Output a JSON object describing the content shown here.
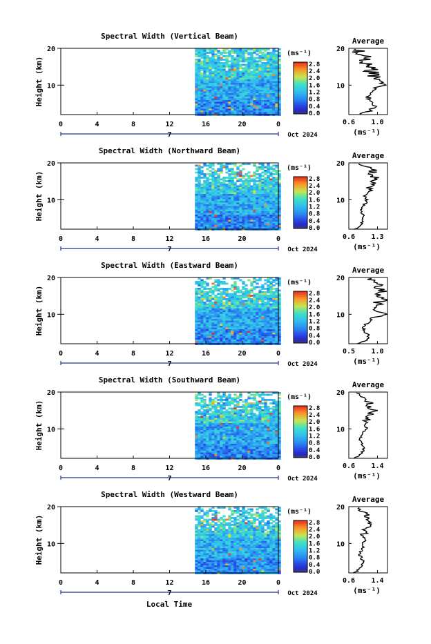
{
  "figure": {
    "xlabel_bottom": "Local Time"
  },
  "panels": [
    {
      "title": "Spectral Width (Vertical Beam)",
      "ylabel": "Height (km)",
      "yticks": [
        "20",
        "10"
      ],
      "xticks": [
        "0",
        "4",
        "8",
        "12",
        "16",
        "20",
        "0"
      ],
      "date_marker": "7",
      "date_label": "Oct 2024",
      "colorbar": {
        "unit_label": "(ms⁻¹)",
        "ticks": [
          "2.8",
          "2.4",
          "2.0",
          "1.6",
          "1.2",
          "0.8",
          "0.4",
          "0.0"
        ]
      },
      "profile": {
        "title": "Average",
        "xticks": [
          "0.6",
          "1.0"
        ],
        "yticks": [
          "20",
          "10"
        ],
        "xlabel": "(ms⁻¹)"
      }
    },
    {
      "title": "Spectral Width (Northward Beam)",
      "ylabel": "Height (km)",
      "yticks": [
        "20",
        "10"
      ],
      "xticks": [
        "0",
        "4",
        "8",
        "12",
        "16",
        "20",
        "0"
      ],
      "date_marker": "7",
      "date_label": "Oct 2024",
      "colorbar": {
        "unit_label": "(ms⁻¹)",
        "ticks": [
          "2.8",
          "2.4",
          "2.0",
          "1.6",
          "1.2",
          "0.8",
          "0.4",
          "0.0"
        ]
      },
      "profile": {
        "title": "Average",
        "xticks": [
          "0.6",
          "1.3"
        ],
        "yticks": [
          "20",
          "10"
        ],
        "xlabel": "(ms⁻¹)"
      }
    },
    {
      "title": "Spectral Width (Eastward Beam)",
      "ylabel": "Height (km)",
      "yticks": [
        "20",
        "10"
      ],
      "xticks": [
        "0",
        "4",
        "8",
        "12",
        "16",
        "20",
        "0"
      ],
      "date_marker": "7",
      "date_label": "Oct 2024",
      "colorbar": {
        "unit_label": "(ms⁻¹)",
        "ticks": [
          "2.8",
          "2.4",
          "2.0",
          "1.6",
          "1.2",
          "0.8",
          "0.4",
          "0.0"
        ]
      },
      "profile": {
        "title": "Average",
        "xticks": [
          "0.5",
          "1.0"
        ],
        "yticks": [
          "20",
          "10"
        ],
        "xlabel": "(ms⁻¹)"
      }
    },
    {
      "title": "Spectral Width (Southward Beam)",
      "ylabel": "Height (km)",
      "yticks": [
        "20",
        "10"
      ],
      "xticks": [
        "0",
        "4",
        "8",
        "12",
        "16",
        "20",
        "0"
      ],
      "date_marker": "7",
      "date_label": "Oct 2024",
      "colorbar": {
        "unit_label": "(ms⁻¹)",
        "ticks": [
          "2.8",
          "2.4",
          "2.0",
          "1.6",
          "1.2",
          "0.8",
          "0.4",
          "0.0"
        ]
      },
      "profile": {
        "title": "Average",
        "xticks": [
          "0.6",
          "1.4"
        ],
        "yticks": [
          "20",
          "10"
        ],
        "xlabel": "(ms⁻¹)"
      }
    },
    {
      "title": "Spectral Width (Westward Beam)",
      "ylabel": "Height (km)",
      "yticks": [
        "20",
        "10"
      ],
      "xticks": [
        "0",
        "4",
        "8",
        "12",
        "16",
        "20",
        "0"
      ],
      "date_marker": "7",
      "date_label": "Oct 2024",
      "colorbar": {
        "unit_label": "(ms⁻¹)",
        "ticks": [
          "2.8",
          "2.4",
          "2.0",
          "1.6",
          "1.2",
          "0.8",
          "0.4",
          "0.0"
        ]
      },
      "profile": {
        "title": "Average",
        "xticks": [
          "0.6",
          "1.4"
        ],
        "yticks": [
          "20",
          "10"
        ],
        "xlabel": "(ms⁻¹)"
      }
    }
  ],
  "chart_data": [
    {
      "type": "heatmap",
      "title": "Spectral Width (Vertical Beam)",
      "xlabel": "",
      "ylabel": "Height (km)",
      "xlim": [
        0,
        24
      ],
      "ylim": [
        2,
        20
      ],
      "data_start_hour": 14.8,
      "colorbar_range": [
        0.0,
        2.8
      ],
      "average_profile": {
        "height": [
          2,
          3,
          4,
          5,
          6,
          7,
          8,
          9,
          10,
          11,
          12,
          13,
          14,
          15,
          16,
          17,
          18,
          19,
          20
        ],
        "value": [
          0.75,
          0.9,
          0.95,
          0.95,
          0.9,
          0.85,
          0.9,
          0.95,
          1.1,
          1.05,
          0.95,
          0.95,
          0.9,
          0.9,
          0.85,
          0.8,
          0.85,
          0.75,
          0.7
        ]
      }
    },
    {
      "type": "heatmap",
      "title": "Spectral Width (Northward Beam)",
      "xlabel": "",
      "ylabel": "Height (km)",
      "xlim": [
        0,
        24
      ],
      "ylim": [
        2,
        20
      ],
      "data_start_hour": 14.8,
      "colorbar_range": [
        0.0,
        2.8
      ],
      "average_profile": {
        "height": [
          2,
          3,
          4,
          5,
          6,
          7,
          8,
          9,
          10,
          11,
          12,
          13,
          14,
          15,
          16,
          17,
          18,
          19,
          20
        ],
        "value": [
          0.75,
          0.9,
          0.95,
          0.9,
          0.95,
          0.9,
          0.95,
          1.0,
          1.05,
          1.0,
          1.05,
          1.1,
          1.15,
          1.2,
          1.25,
          1.15,
          1.2,
          1.05,
          0.9
        ]
      }
    },
    {
      "type": "heatmap",
      "title": "Spectral Width (Eastward Beam)",
      "xlabel": "",
      "ylabel": "Height (km)",
      "xlim": [
        0,
        24
      ],
      "ylim": [
        2,
        20
      ],
      "data_start_hour": 14.8,
      "colorbar_range": [
        0.0,
        2.8
      ],
      "average_profile": {
        "height": [
          2,
          3,
          4,
          5,
          6,
          7,
          8,
          9,
          10,
          11,
          12,
          13,
          14,
          15,
          16,
          17,
          18,
          19,
          20
        ],
        "value": [
          0.65,
          0.8,
          0.85,
          0.8,
          0.75,
          0.75,
          0.85,
          0.9,
          1.2,
          0.95,
          0.95,
          1.0,
          1.1,
          1.05,
          1.1,
          1.0,
          1.05,
          0.95,
          0.85
        ]
      }
    },
    {
      "type": "heatmap",
      "title": "Spectral Width (Southward Beam)",
      "xlabel": "",
      "ylabel": "Height (km)",
      "xlim": [
        0,
        24
      ],
      "ylim": [
        2,
        20
      ],
      "data_start_hour": 14.8,
      "colorbar_range": [
        0.0,
        2.8
      ],
      "average_profile": {
        "height": [
          2,
          3,
          4,
          5,
          6,
          7,
          8,
          9,
          10,
          11,
          12,
          13,
          14,
          15,
          16,
          17,
          18,
          19,
          20
        ],
        "value": [
          0.75,
          0.9,
          1.0,
          1.0,
          0.95,
          0.9,
          0.95,
          1.0,
          1.1,
          1.05,
          1.1,
          1.15,
          1.2,
          1.3,
          1.15,
          1.2,
          1.1,
          1.0,
          0.9
        ]
      }
    },
    {
      "type": "heatmap",
      "title": "Spectral Width (Westward Beam)",
      "xlabel": "Local Time",
      "ylabel": "Height (km)",
      "xlim": [
        0,
        24
      ],
      "ylim": [
        2,
        20
      ],
      "data_start_hour": 14.8,
      "colorbar_range": [
        0.0,
        2.8
      ],
      "average_profile": {
        "height": [
          2,
          3,
          4,
          5,
          6,
          7,
          8,
          9,
          10,
          11,
          12,
          13,
          14,
          15,
          16,
          17,
          18,
          19,
          20
        ],
        "value": [
          0.75,
          0.9,
          0.95,
          1.0,
          0.95,
          0.9,
          0.95,
          1.0,
          1.0,
          1.05,
          1.0,
          1.05,
          1.1,
          1.3,
          1.1,
          1.15,
          1.05,
          0.95,
          0.85
        ]
      }
    }
  ]
}
